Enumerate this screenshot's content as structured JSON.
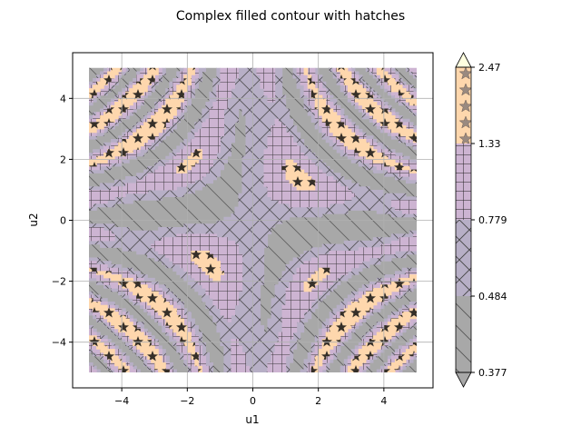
{
  "chart_data": {
    "type": "heatmap",
    "subtype": "filled-contour-with-hatches",
    "title": "Complex filled contour with hatches",
    "xlabel": "u1",
    "ylabel": "u2",
    "xlim": [
      -5.5,
      5.5
    ],
    "ylim": [
      -5.5,
      5.5
    ],
    "data_extent": {
      "x": [
        -5,
        5
      ],
      "y": [
        -5,
        5
      ]
    },
    "xticks": [
      -4,
      -2,
      0,
      2,
      4
    ],
    "yticks": [
      -4,
      -2,
      0,
      2,
      4
    ],
    "xtick_labels": [
      "−4",
      "−2",
      "0",
      "2",
      "4"
    ],
    "ytick_labels": [
      "−4",
      "−2",
      "0",
      "2",
      "4"
    ],
    "grid": true,
    "colorbar": {
      "levels": [
        0.377,
        0.484,
        0.779,
        1.33,
        2.47
      ],
      "tick_labels": [
        "0.377",
        "0.484",
        "0.779",
        "1.33",
        "2.47"
      ],
      "extend": "both",
      "bands": [
        {
          "range": [
            0.377,
            0.484
          ],
          "color": "#a8a8a8",
          "hatch": "diagonal-back"
        },
        {
          "range": [
            0.484,
            0.779
          ],
          "color": "#b7afc6",
          "hatch": "cross-diagonal"
        },
        {
          "range": [
            0.779,
            1.33
          ],
          "color": "#cdb4d2",
          "hatch": "grid"
        },
        {
          "range": [
            1.33,
            2.47
          ],
          "color": "#fed7ad",
          "hatch": "stars"
        }
      ]
    }
  }
}
